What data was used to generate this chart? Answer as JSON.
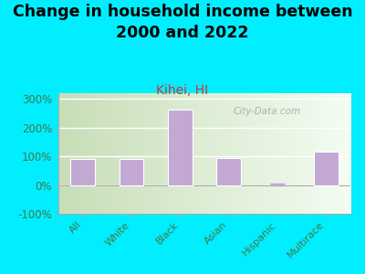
{
  "title": "Change in household income between\n2000 and 2022",
  "subtitle": "Kihei, HI",
  "categories": [
    "All",
    "White",
    "Black",
    "Asian",
    "Hispanic",
    "Multirace"
  ],
  "values": [
    90,
    92,
    262,
    93,
    0,
    117
  ],
  "bar_color": "#c4a8d4",
  "bar_edge_color": "#ffffff",
  "background_outer": "#00eeff",
  "plot_bg_left": "#c8ddb8",
  "plot_bg_right": "#f0f8ee",
  "ylim": [
    -100,
    320
  ],
  "yticks": [
    -100,
    0,
    100,
    200,
    300
  ],
  "ytick_labels": [
    "-100%",
    "0%",
    "100%",
    "200%",
    "300%"
  ],
  "title_fontsize": 12.5,
  "subtitle_fontsize": 10,
  "subtitle_color": "#cc3333",
  "ytick_color": "#447744",
  "xtick_color": "#447744",
  "watermark": "City-Data.com",
  "watermark_color": "#99aaa8",
  "hispanic_line_color": "#c4a8d4",
  "grid_color": "#ffffff",
  "spine_color": "#aaaaaa"
}
